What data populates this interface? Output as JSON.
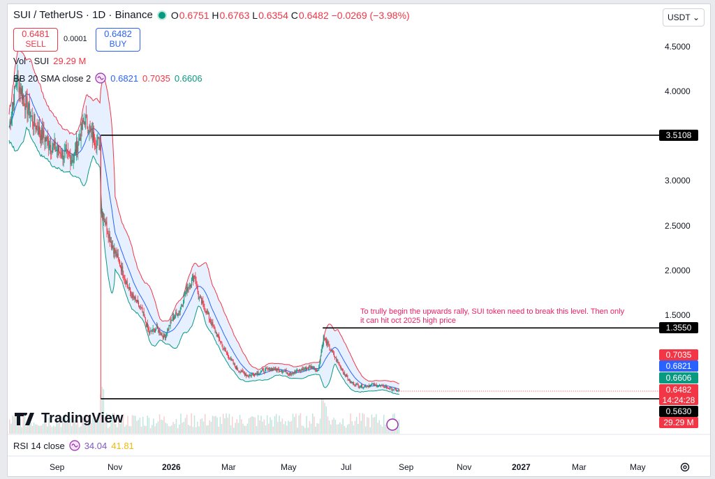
{
  "header": {
    "pair_title": "SUI / TetherUS · 1D · Binance",
    "ohlc": {
      "o": "0.6751",
      "h": "0.6763",
      "l": "0.6354",
      "c": "0.6482",
      "change": "−0.0269 (−3.98%)"
    },
    "sell_price": "0.6481",
    "sell_label": "SELL",
    "buy_price": "0.6482",
    "buy_label": "BUY",
    "spread": "0.0001",
    "currency": "USDT",
    "volume_legend": {
      "label": "Vol · SUI",
      "value": "29.29 M"
    },
    "bb_legend": {
      "label": "BB 20 SMA close 2",
      "basis": "0.6821",
      "upper": "0.7035",
      "lower": "0.6606"
    },
    "rsi_legend": {
      "label": "RSI 14 close",
      "rsi": "34.04",
      "ma": "41.81"
    },
    "logo": "TradingView"
  },
  "colors": {
    "up": "#089981",
    "down": "#f23645",
    "bb_basis": "#2962ff",
    "bb_upper": "#f23645",
    "bb_lower": "#089981",
    "bb_fill": "#dbeafe",
    "annotation": "#e91e63"
  },
  "chart_data": {
    "type": "candlestick",
    "y_axis": {
      "ticks": [
        "4.5000",
        "4.0000",
        "3.5000",
        "3.0000",
        "2.5000",
        "2.0000",
        "1.5000"
      ],
      "range": [
        0.5,
        4.75
      ]
    },
    "x_axis": {
      "ticks": [
        "Sep",
        "Nov",
        "2026",
        "Mar",
        "May",
        "Jul",
        "Sep",
        "Nov",
        "2027",
        "Mar",
        "May"
      ]
    },
    "price_path": {
      "t": [
        0,
        10,
        20,
        30,
        40,
        55,
        70,
        85,
        100,
        110,
        120,
        121,
        125,
        135,
        145,
        160,
        175,
        185,
        195,
        205,
        215,
        225,
        235,
        245,
        250,
        260,
        270,
        285,
        300,
        315,
        330,
        345,
        360,
        370,
        380,
        390,
        400,
        408,
        415,
        425,
        435,
        450,
        465,
        480,
        495,
        505,
        515
      ],
      "close": [
        3.6,
        4.15,
        3.9,
        3.7,
        3.55,
        3.4,
        3.3,
        3.25,
        3.7,
        3.5,
        3.4,
        2.7,
        2.6,
        2.3,
        2.1,
        1.75,
        1.55,
        1.3,
        1.35,
        1.25,
        1.45,
        1.55,
        1.8,
        1.95,
        1.7,
        1.55,
        1.35,
        1.1,
        0.9,
        0.82,
        0.86,
        0.9,
        0.88,
        0.85,
        0.87,
        0.9,
        0.92,
        0.88,
        1.25,
        1.1,
        0.95,
        0.75,
        0.7,
        0.72,
        0.7,
        0.67,
        0.6482
      ]
    },
    "bollinger": {
      "basis": 0.6821,
      "upper": 0.7035,
      "lower": 0.6606
    },
    "horizontal_levels": [
      {
        "price": 3.5108,
        "label": "3.5108"
      },
      {
        "price": 1.355,
        "label": "1.3550"
      },
      {
        "price": 0.563,
        "label": "0.5630"
      }
    ],
    "price_scale_tags": [
      {
        "label": "0.7035",
        "color": "#f23645"
      },
      {
        "label": "0.6821",
        "color": "#2962ff"
      },
      {
        "label": "0.6606",
        "color": "#089981"
      },
      {
        "label": "0.6482",
        "color": "#f23645",
        "sub": "14:24:28"
      },
      {
        "label": "0.5630",
        "color": "#000000"
      },
      {
        "label": "29.29 M",
        "color": "#f23645"
      }
    ],
    "annotation": "To trully begin the upwards rally, SUI token need to break this level. Then only it can hit oct 2025 high price",
    "rsi": 34.04,
    "rsi_ma": 41.81
  }
}
